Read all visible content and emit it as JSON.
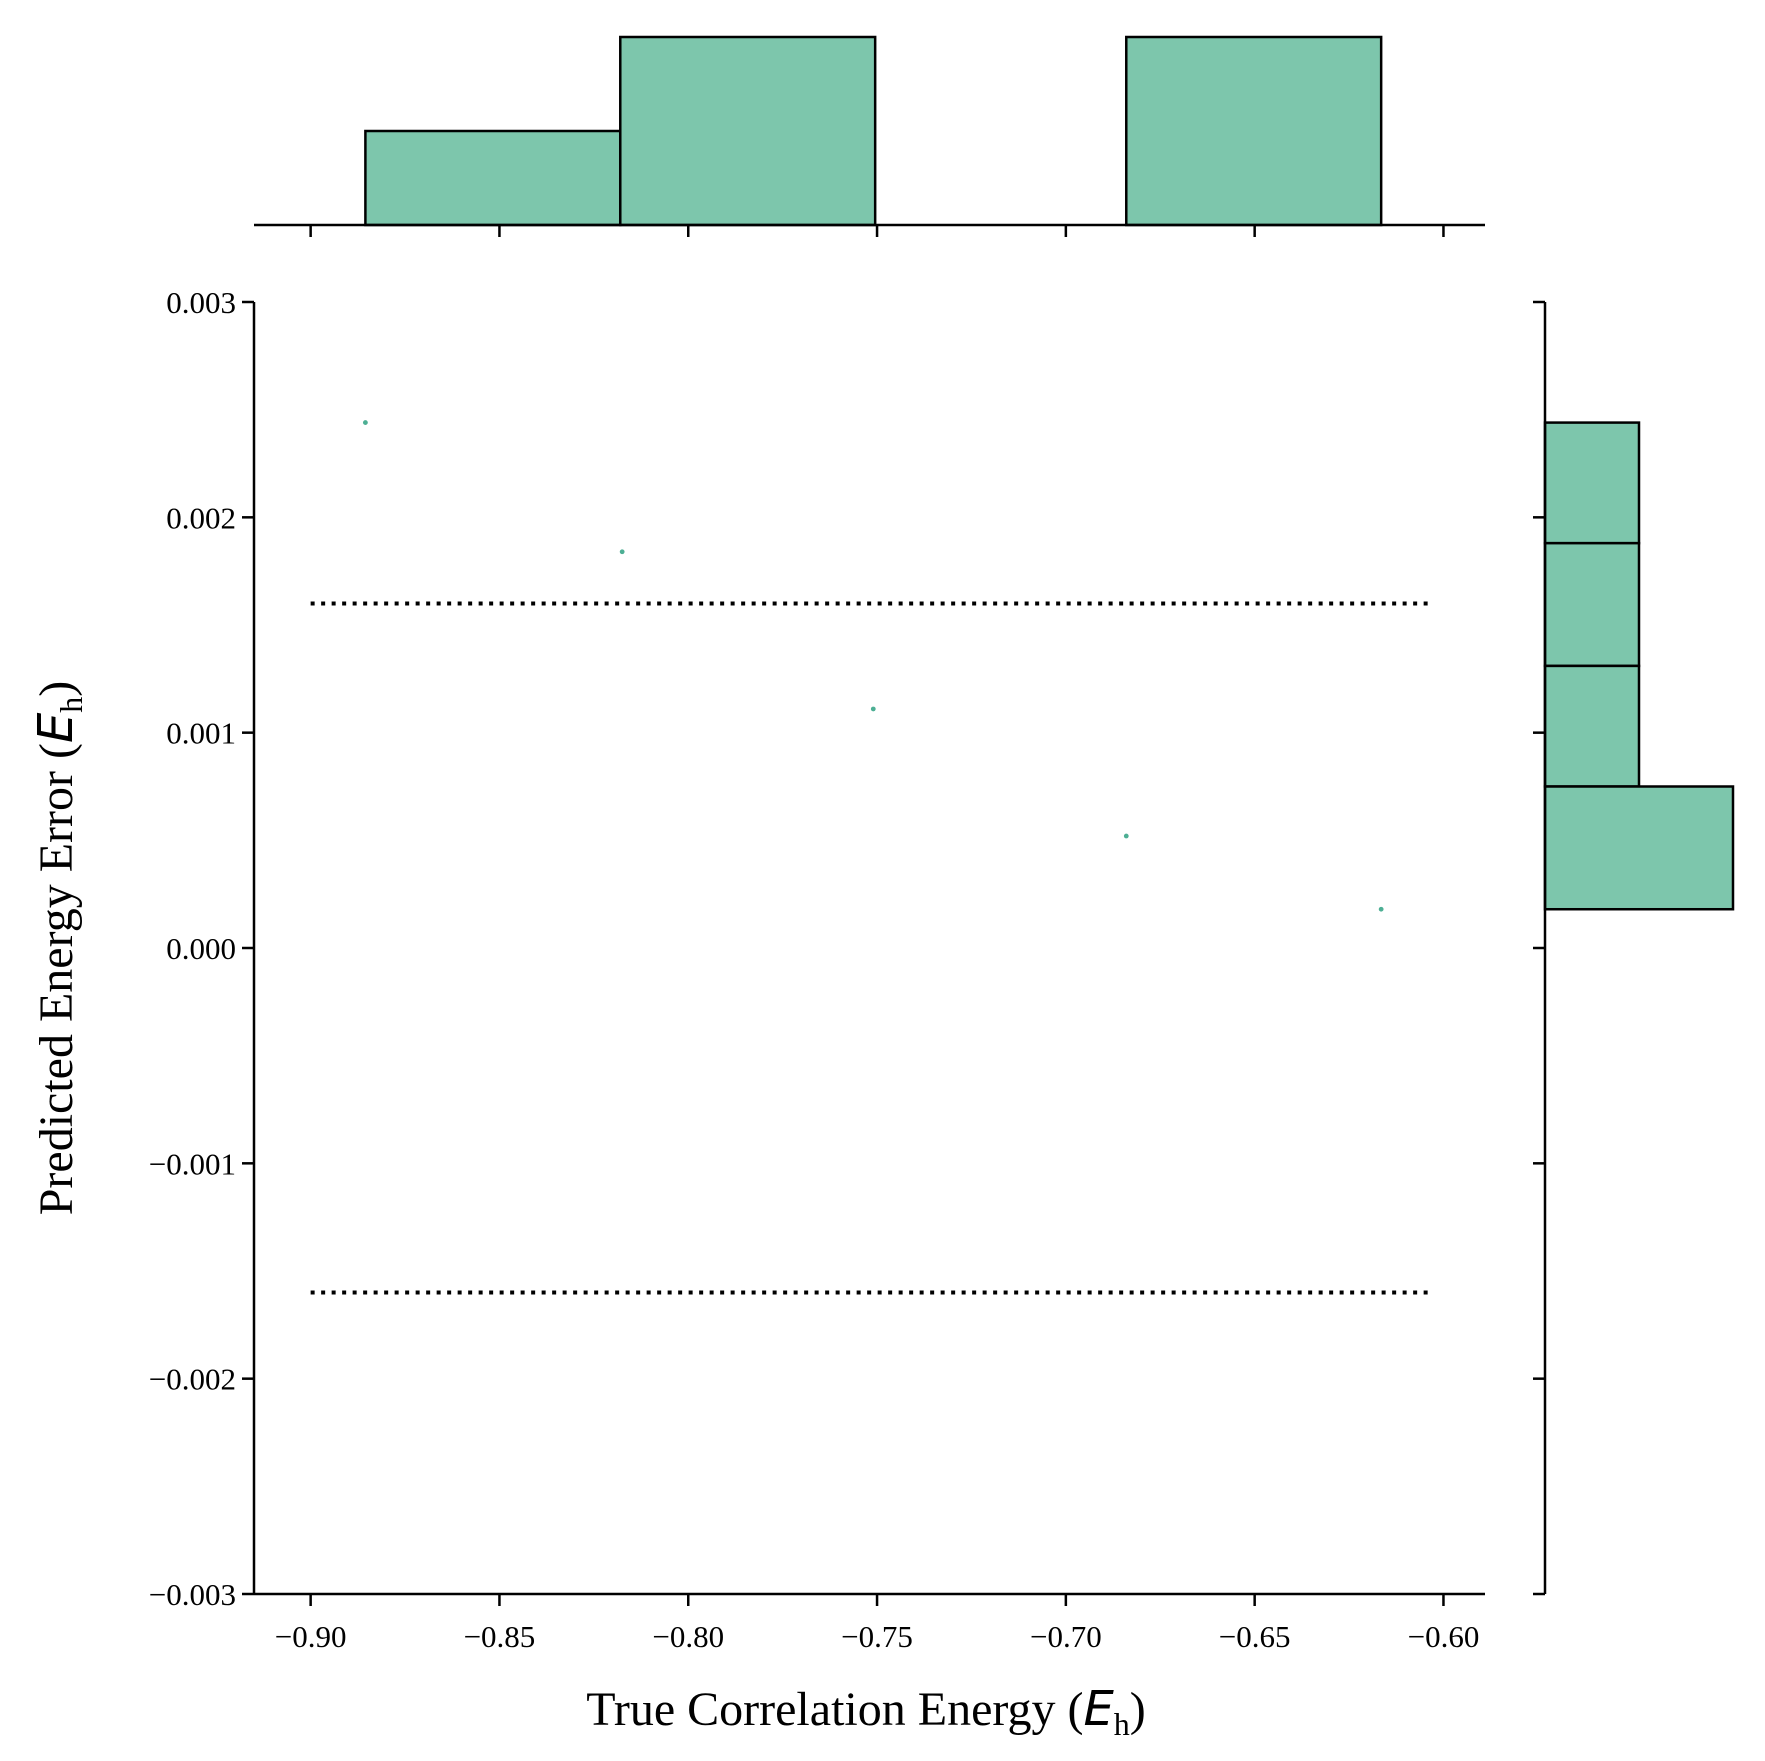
{
  "chart_data": {
    "type": "scatter",
    "xlabel": {
      "prefix": "True Correlation Energy (",
      "symbol": "E",
      "subscript": "h",
      "suffix": ")"
    },
    "ylabel": {
      "prefix": "Predicted Energy Error (",
      "symbol": "E",
      "subscript": "h",
      "suffix": ")"
    },
    "xlim": [
      -0.915,
      -0.589
    ],
    "ylim": [
      -0.003,
      0.003
    ],
    "x_ticks": [
      -0.9,
      -0.85,
      -0.8,
      -0.75,
      -0.7,
      -0.65,
      -0.6
    ],
    "x_tick_labels": [
      "−0.90",
      "−0.85",
      "−0.80",
      "−0.75",
      "−0.70",
      "−0.65",
      "−0.60"
    ],
    "y_ticks": [
      0.003,
      0.002,
      0.001,
      0.0,
      -0.001,
      -0.002,
      -0.003
    ],
    "y_tick_labels": [
      "0.003",
      "0.002",
      "0.001",
      "0.000",
      "−0.001",
      "−0.002",
      "−0.003"
    ],
    "grid": false,
    "colors": {
      "points": "#4daf94",
      "hist_fill": "#7dc6ac",
      "hist_edge": "#000000",
      "threshold_line": "#000000"
    },
    "points": [
      {
        "x": -0.8855,
        "y": 0.00244
      },
      {
        "x": -0.8175,
        "y": 0.00184
      },
      {
        "x": -0.751,
        "y": 0.00111
      },
      {
        "x": -0.684,
        "y": 0.00052
      },
      {
        "x": -0.6165,
        "y": 0.00018
      }
    ],
    "reference_lines": [
      {
        "y": 0.0016,
        "x_range": [
          -0.9,
          -0.6035
        ],
        "style": "dotted"
      },
      {
        "y": -0.0016,
        "x_range": [
          -0.9,
          -0.6035
        ],
        "style": "dotted"
      }
    ],
    "top_histogram": {
      "bins": [
        {
          "x0": -0.8855,
          "x1": -0.818,
          "count": 1
        },
        {
          "x0": -0.818,
          "x1": -0.7505,
          "count": 2
        },
        {
          "x0": -0.7505,
          "x1": -0.684,
          "count": 0
        },
        {
          "x0": -0.684,
          "x1": -0.6165,
          "count": 2
        }
      ],
      "max_count": 2
    },
    "right_histogram": {
      "bins": [
        {
          "y0": 0.00188,
          "y1": 0.00244,
          "count": 1
        },
        {
          "y0": 0.00131,
          "y1": 0.00188,
          "count": 1
        },
        {
          "y0": 0.00075,
          "y1": 0.00131,
          "count": 1
        },
        {
          "y0": 0.00018,
          "y1": 0.00075,
          "count": 2
        }
      ],
      "max_count": 2
    }
  }
}
